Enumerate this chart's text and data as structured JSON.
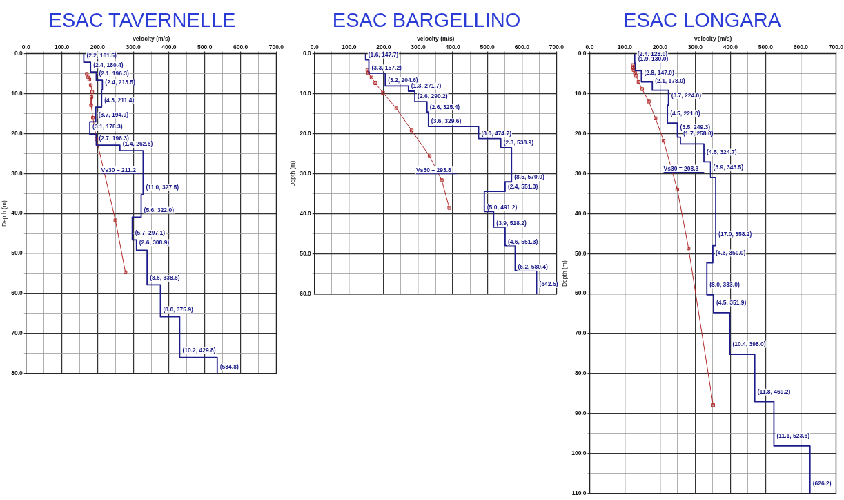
{
  "chart_data": [
    {
      "type": "line",
      "title": "ESAC TAVERNELLE",
      "xlabel": "Velocity (m/s)",
      "ylabel": "Depth (m)",
      "grid": true,
      "legend": false,
      "xlim": [
        0,
        700
      ],
      "xticks": [
        {
          "value": 0,
          "label": "0.0"
        },
        {
          "value": 50,
          "label": null
        },
        {
          "value": 100,
          "label": "100.0"
        },
        {
          "value": 150,
          "label": null
        },
        {
          "value": 200,
          "label": "200.0"
        },
        {
          "value": 250,
          "label": null
        },
        {
          "value": 300,
          "label": "300.0"
        },
        {
          "value": 350,
          "label": null
        },
        {
          "value": 400,
          "label": "400.0"
        },
        {
          "value": 450,
          "label": null
        },
        {
          "value": 500,
          "label": "500.0"
        },
        {
          "value": 550,
          "label": null
        },
        {
          "value": 600,
          "label": "600.0"
        },
        {
          "value": 650,
          "label": null
        },
        {
          "value": 700,
          "label": "700.0"
        }
      ],
      "ylim": [
        80,
        0
      ],
      "yticks": [
        {
          "value": 0,
          "label": "0.0"
        },
        {
          "value": 5,
          "label": null
        },
        {
          "value": 10,
          "label": "10.0"
        },
        {
          "value": 15,
          "label": null
        },
        {
          "value": 20,
          "label": "20.0"
        },
        {
          "value": 25,
          "label": null
        },
        {
          "value": 30,
          "label": "30.0"
        },
        {
          "value": 35,
          "label": null
        },
        {
          "value": 40,
          "label": "40.0"
        },
        {
          "value": 45,
          "label": null
        },
        {
          "value": 50,
          "label": "50.0"
        },
        {
          "value": 55,
          "label": null
        },
        {
          "value": 60,
          "label": "60.0"
        },
        {
          "value": 65,
          "label": null
        },
        {
          "value": 70,
          "label": "70.0"
        },
        {
          "value": 75,
          "label": null
        },
        {
          "value": 80,
          "label": "80.0"
        }
      ],
      "series": [
        {
          "type": "line",
          "color": "#1c1c8a",
          "marker": "none",
          "x": [
            161.5,
            161.5,
            180.4,
            180.4,
            196.3,
            196.3,
            213.5,
            213.5,
            211.4,
            211.4,
            194.9,
            194.9,
            178.3,
            178.3,
            196.3,
            196.3,
            262.6,
            262.6,
            327.5,
            327.5,
            322.0,
            322.0,
            297.1,
            297.1,
            308.9,
            308.9,
            338.6,
            338.6,
            375.9,
            375.9,
            429.8,
            429.8,
            534.8,
            534.8
          ],
          "values": [
            0,
            2.2,
            2.2,
            4.6,
            4.6,
            6.7,
            6.7,
            9.1,
            9.1,
            13.4,
            13.4,
            17.1,
            17.1,
            20.2,
            20.2,
            22.9,
            22.9,
            24.3,
            24.3,
            35.3,
            35.3,
            40.9,
            40.9,
            46.6,
            46.6,
            49.2,
            49.2,
            57.8,
            57.8,
            65.8,
            65.8,
            76.0,
            76.0,
            80
          ]
        },
        {
          "type": "line",
          "color": "#b02a2a",
          "marker": "square",
          "x": [
            170,
            174,
            177,
            181,
            185,
            183,
            182,
            187,
            197,
            250,
            278
          ],
          "values": [
            5.1,
            6.0,
            6.5,
            7.9,
            9.6,
            10.9,
            12.9,
            16.1,
            21.4,
            41.7,
            54.7
          ]
        }
      ],
      "annotations": [
        {
          "text": "(2.2, 161.5)",
          "x": 161.5,
          "y": 0.5
        },
        {
          "text": "(2.4, 180.4)",
          "x": 180.4,
          "y": 2.9
        },
        {
          "text": "(2.1, 196.3)",
          "x": 196.3,
          "y": 5.0
        },
        {
          "text": "(2.4, 213.5)",
          "x": 213.5,
          "y": 7.3
        },
        {
          "text": "(4.3, 211.4)",
          "x": 211.4,
          "y": 11.7
        },
        {
          "text": "(3.7, 194.9)",
          "x": 194.9,
          "y": 15.4
        },
        {
          "text": "(3.1, 178.3)",
          "x": 178.3,
          "y": 18.4
        },
        {
          "text": "(2.7, 196.3)",
          "x": 196.3,
          "y": 21.2
        },
        {
          "text": "(1.4, 262.6)",
          "x": 262.6,
          "y": 22.7
        },
        {
          "text": "(11.0, 327.5)",
          "x": 327.5,
          "y": 33.6
        },
        {
          "text": "(5.6, 322.0)",
          "x": 322.0,
          "y": 39.2
        },
        {
          "text": "(5.7, 297.1)",
          "x": 297.1,
          "y": 45.0
        },
        {
          "text": "(2.6, 308.9)",
          "x": 308.9,
          "y": 47.3
        },
        {
          "text": "(8.6, 338.6)",
          "x": 338.6,
          "y": 56.2
        },
        {
          "text": "(8.0, 375.9)",
          "x": 375.9,
          "y": 64.0
        },
        {
          "text": "(10.2, 429.8)",
          "x": 429.8,
          "y": 74.3
        },
        {
          "text": "(534.8)",
          "x": 534.8,
          "y": 78.4
        },
        "Vs30 = 211.2"
      ]
    },
    {
      "type": "line",
      "title": "ESAC BARGELLINO",
      "xlabel": "Velocity (m/s)",
      "ylabel": "Depth (m)",
      "grid": true,
      "legend": false,
      "xlim": [
        0,
        700
      ],
      "xticks": [
        {
          "value": 0,
          "label": "0.0"
        },
        {
          "value": 50,
          "label": null
        },
        {
          "value": 100,
          "label": "100.0"
        },
        {
          "value": 150,
          "label": null
        },
        {
          "value": 200,
          "label": "200.0"
        },
        {
          "value": 250,
          "label": null
        },
        {
          "value": 300,
          "label": "300.0"
        },
        {
          "value": 350,
          "label": null
        },
        {
          "value": 400,
          "label": "400.0"
        },
        {
          "value": 450,
          "label": null
        },
        {
          "value": 500,
          "label": "500.0"
        },
        {
          "value": 550,
          "label": null
        },
        {
          "value": 600,
          "label": "600.0"
        },
        {
          "value": 650,
          "label": null
        },
        {
          "value": 700,
          "label": "700.0"
        }
      ],
      "ylim": [
        60,
        0
      ],
      "yticks": [
        {
          "value": 0,
          "label": "0.0"
        },
        {
          "value": 5,
          "label": null
        },
        {
          "value": 10,
          "label": "10.0"
        },
        {
          "value": 15,
          "label": null
        },
        {
          "value": 20,
          "label": "20.0"
        },
        {
          "value": 25,
          "label": null
        },
        {
          "value": 30,
          "label": "30.0"
        },
        {
          "value": 35,
          "label": null
        },
        {
          "value": 40,
          "label": "40.0"
        },
        {
          "value": 45,
          "label": null
        },
        {
          "value": 50,
          "label": "50.0"
        },
        {
          "value": 55,
          "label": null
        },
        {
          "value": 60,
          "label": "60.0"
        }
      ],
      "series": [
        {
          "type": "line",
          "color": "#1c1c8a",
          "marker": "none",
          "x": [
            147.7,
            147.7,
            157.2,
            157.2,
            204.6,
            204.6,
            271.7,
            271.7,
            290.2,
            290.2,
            325.4,
            325.4,
            329.6,
            329.6,
            474.7,
            474.7,
            538.9,
            538.9,
            570.0,
            570.0,
            551.3,
            551.3,
            491.2,
            491.2,
            518.2,
            518.2,
            551.3,
            551.3,
            580.4,
            580.4,
            642.5,
            642.5
          ],
          "values": [
            0,
            1.6,
            1.6,
            4.9,
            4.9,
            8.1,
            8.1,
            9.4,
            9.4,
            12.0,
            12.0,
            14.6,
            14.6,
            18.2,
            18.2,
            21.2,
            21.2,
            23.5,
            23.5,
            32.0,
            32.0,
            34.4,
            34.4,
            39.4,
            39.4,
            43.3,
            43.3,
            47.9,
            47.9,
            54.1,
            54.1,
            60
          ]
        },
        {
          "type": "line",
          "color": "#b02a2a",
          "marker": "square",
          "x": [
            153,
            155,
            165,
            176,
            198,
            237,
            281,
            333,
            368,
            390
          ],
          "values": [
            4.1,
            4.9,
            6.0,
            7.4,
            9.8,
            13.7,
            19.2,
            25.6,
            31.6,
            38.5
          ]
        }
      ],
      "annotations": [
        {
          "text": "(1.6, 147.7)",
          "x": 147.7,
          "y": 0.4
        },
        {
          "text": "(3.3, 157.2)",
          "x": 157.2,
          "y": 3.6
        },
        {
          "text": "(3.2, 204.6)",
          "x": 204.6,
          "y": 6.8
        },
        {
          "text": "(1.3, 271.7)",
          "x": 271.7,
          "y": 8.1
        },
        {
          "text": "(2.6, 290.2)",
          "x": 290.2,
          "y": 10.7
        },
        {
          "text": "(2.6, 325.4)",
          "x": 325.4,
          "y": 13.4
        },
        {
          "text": "(3.6, 329.6)",
          "x": 329.6,
          "y": 17.0
        },
        {
          "text": "(3.0, 474.7)",
          "x": 474.7,
          "y": 20.1
        },
        {
          "text": "(2.3, 538.9)",
          "x": 538.9,
          "y": 22.3
        },
        {
          "text": "(8.5, 570.0)",
          "x": 570.0,
          "y": 30.9
        },
        {
          "text": "(2.4, 551.3)",
          "x": 551.3,
          "y": 33.3
        },
        {
          "text": "(5.0, 491.2)",
          "x": 491.2,
          "y": 38.4
        },
        {
          "text": "(3.9, 518.2)",
          "x": 518.2,
          "y": 42.4
        },
        {
          "text": "(4.6, 551.3)",
          "x": 551.3,
          "y": 47.0
        },
        {
          "text": "(6.2, 580.4)",
          "x": 580.4,
          "y": 53.3
        },
        {
          "text": "(642.5)",
          "x": 642.5,
          "y": 57.6
        },
        "Vs30 = 293.8"
      ]
    },
    {
      "type": "line",
      "title": "ESAC LONGARA",
      "xlabel": "Velocity (m/s)",
      "ylabel": "Depth (m)",
      "grid": true,
      "legend": false,
      "xlim": [
        0,
        700
      ],
      "xticks": [
        {
          "value": 0,
          "label": "0.0"
        },
        {
          "value": 50,
          "label": null
        },
        {
          "value": 100,
          "label": "100.0"
        },
        {
          "value": 150,
          "label": null
        },
        {
          "value": 200,
          "label": "200.0"
        },
        {
          "value": 250,
          "label": null
        },
        {
          "value": 300,
          "label": "300.0"
        },
        {
          "value": 350,
          "label": null
        },
        {
          "value": 400,
          "label": "400.0"
        },
        {
          "value": 450,
          "label": null
        },
        {
          "value": 500,
          "label": "500.0"
        },
        {
          "value": 550,
          "label": null
        },
        {
          "value": 600,
          "label": "600.0"
        },
        {
          "value": 650,
          "label": null
        },
        {
          "value": 700,
          "label": "700.0"
        }
      ],
      "ylim": [
        110,
        0
      ],
      "yticks": [
        {
          "value": 0,
          "label": "0.0"
        },
        {
          "value": 5,
          "label": null
        },
        {
          "value": 10,
          "label": "10.0"
        },
        {
          "value": 15,
          "label": null
        },
        {
          "value": 20,
          "label": "20.0"
        },
        {
          "value": 25,
          "label": null
        },
        {
          "value": 30,
          "label": "30.0"
        },
        {
          "value": 35,
          "label": null
        },
        {
          "value": 40,
          "label": "40.0"
        },
        {
          "value": 45,
          "label": null
        },
        {
          "value": 50,
          "label": "50.0"
        },
        {
          "value": 55,
          "label": null
        },
        {
          "value": 60,
          "label": "60.0"
        },
        {
          "value": 65,
          "label": null
        },
        {
          "value": 70,
          "label": "70.0"
        },
        {
          "value": 75,
          "label": null
        },
        {
          "value": 80,
          "label": "80.0"
        },
        {
          "value": 85,
          "label": null
        },
        {
          "value": 90,
          "label": "90.0"
        },
        {
          "value": 95,
          "label": null
        },
        {
          "value": 100,
          "label": "100.0"
        },
        {
          "value": 105,
          "label": null
        },
        {
          "value": 110,
          "label": "110.0"
        }
      ],
      "series": [
        {
          "type": "line",
          "color": "#1c1c8a",
          "marker": "none",
          "x": [
            128.0,
            128.0,
            130.0,
            130.0,
            147.0,
            147.0,
            178.0,
            178.0,
            224.0,
            224.0,
            221.0,
            221.0,
            249.3,
            249.3,
            258.0,
            258.0,
            324.7,
            324.7,
            343.5,
            343.5,
            358.2,
            358.2,
            350.0,
            350.0,
            333.0,
            333.0,
            351.9,
            351.9,
            398.0,
            398.0,
            469.2,
            469.2,
            523.6,
            523.6,
            626.2,
            626.2
          ],
          "values": [
            0,
            2.4,
            2.4,
            4.3,
            4.3,
            7.1,
            7.1,
            9.2,
            9.2,
            12.9,
            12.9,
            17.4,
            17.4,
            20.9,
            20.9,
            22.6,
            22.6,
            27.1,
            27.1,
            31.0,
            31.0,
            48.0,
            48.0,
            52.3,
            52.3,
            60.3,
            60.3,
            64.8,
            64.8,
            75.2,
            75.2,
            87.0,
            87.0,
            98.1,
            98.1,
            110
          ]
        },
        {
          "type": "line",
          "color": "#b02a2a",
          "marker": "square",
          "x": [
            123,
            124,
            125,
            129,
            132,
            139,
            149,
            168,
            187,
            210,
            249,
            281,
            351
          ],
          "values": [
            2.9,
            3.6,
            4.1,
            4.9,
            5.6,
            7.1,
            8.9,
            12.0,
            16.2,
            21.8,
            34.0,
            48.7,
            87.9
          ]
        }
      ],
      "annotations": [
        {
          "text": "(2.4, 128.0)",
          "x": 128.0,
          "y": 0.3
        },
        {
          "text": "(1.9, 130.0)",
          "x": 130.0,
          "y": 1.5
        },
        {
          "text": "(2.8, 147.0)",
          "x": 147.0,
          "y": 4.9
        },
        {
          "text": "(2.1, 178.0)",
          "x": 178.0,
          "y": 6.9
        },
        {
          "text": "(3.7, 224.0)",
          "x": 224.0,
          "y": 10.6
        },
        {
          "text": "(4.5, 221.0)",
          "x": 221.0,
          "y": 15.0
        },
        {
          "text": "(3.5, 249.3)",
          "x": 249.3,
          "y": 18.5
        },
        {
          "text": "(1.7, 258.0)",
          "x": 258.0,
          "y": 20.1
        },
        {
          "text": "(4.5, 324.7)",
          "x": 324.7,
          "y": 24.7
        },
        {
          "text": "(3.9, 343.5)",
          "x": 343.5,
          "y": 28.6
        },
        {
          "text": "(17.0, 358.2)",
          "x": 358.2,
          "y": 45.3
        },
        {
          "text": "(4.3, 350.0)",
          "x": 350.0,
          "y": 49.9
        },
        {
          "text": "(8.0, 333.0)",
          "x": 333.0,
          "y": 57.8
        },
        {
          "text": "(4.5, 351.9)",
          "x": 351.9,
          "y": 62.3
        },
        {
          "text": "(10.4, 398.0)",
          "x": 398.0,
          "y": 72.7
        },
        {
          "text": "(11.8, 469.2)",
          "x": 469.2,
          "y": 84.6
        },
        {
          "text": "(11.1, 523.6)",
          "x": 523.6,
          "y": 95.6
        },
        {
          "text": "(626.2)",
          "x": 626.2,
          "y": 107.5
        },
        "Vs30 = 208.3"
      ]
    }
  ]
}
